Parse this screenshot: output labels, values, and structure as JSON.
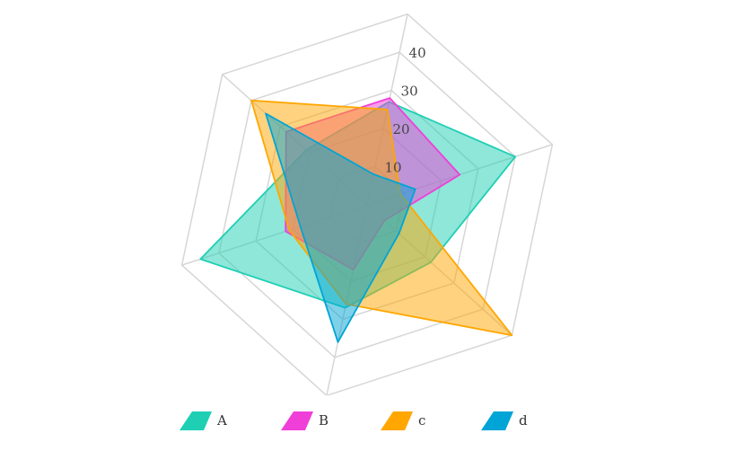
{
  "chart_data": {
    "type": "radar",
    "axes_count": 6,
    "r_ticks": [
      10,
      20,
      30,
      40
    ],
    "r_max": 50,
    "grid": true,
    "legend_position": "bottom",
    "series": [
      {
        "name": "A",
        "color": "#1ecfb4",
        "values": [
          27,
          40,
          22,
          27,
          45,
          21
        ]
      },
      {
        "name": "B",
        "color": "#f03fd8",
        "values": [
          28,
          25,
          6,
          17,
          22,
          28
        ]
      },
      {
        "name": "c",
        "color": "#ffa600",
        "values": [
          25,
          9,
          50,
          26,
          21,
          40
        ]
      },
      {
        "name": "d",
        "color": "#00a4d6",
        "values": [
          8,
          13,
          11,
          36,
          18,
          35
        ]
      }
    ]
  }
}
